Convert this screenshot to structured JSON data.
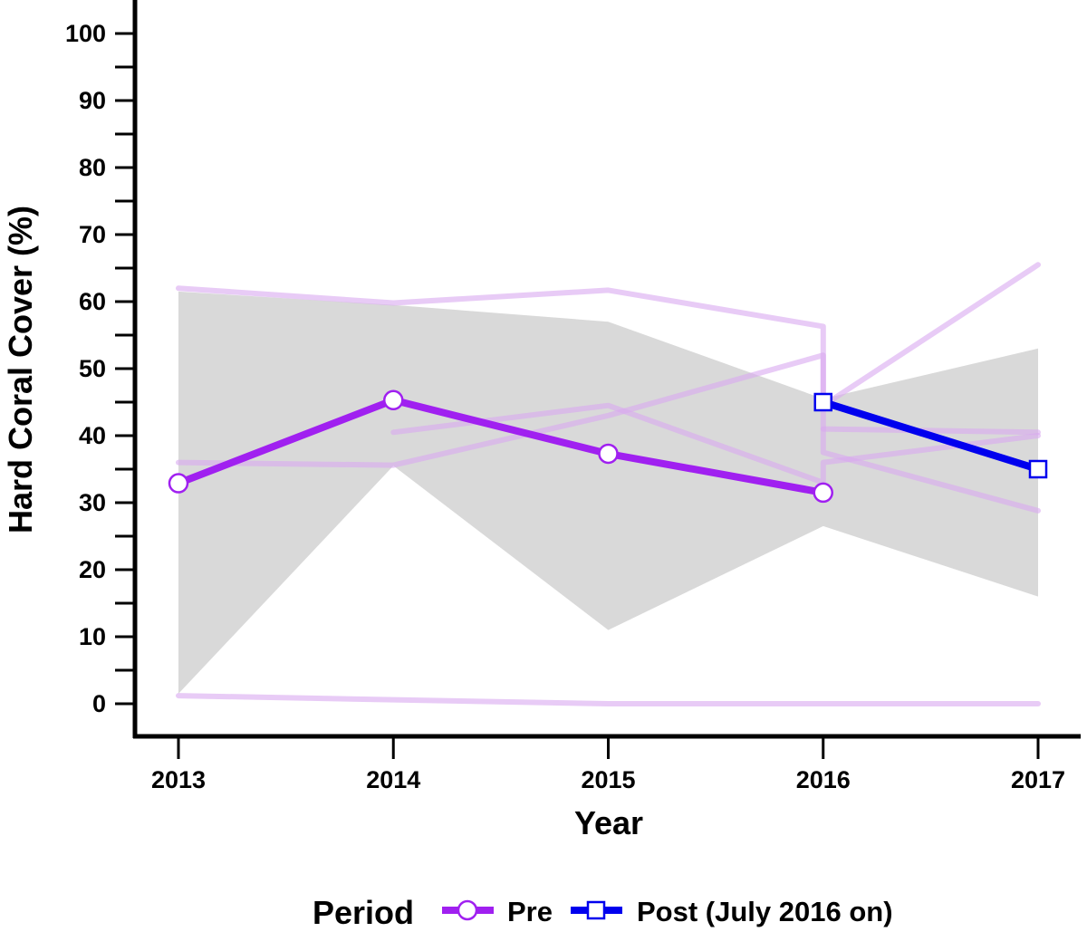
{
  "chart_data": {
    "type": "line",
    "title": "",
    "xlabel": "Year",
    "ylabel": "Hard Coral Cover (%)",
    "x_ticks": [
      "2013",
      "2014",
      "2015",
      "2016",
      "2017"
    ],
    "y_ticks": [
      "0",
      "10",
      "20",
      "30",
      "40",
      "50",
      "60",
      "70",
      "80",
      "90",
      "100"
    ],
    "xlim": [
      2012.8,
      2017.2
    ],
    "ylim": [
      -5,
      105
    ],
    "grid": false,
    "legend": {
      "title": "Period",
      "position": "bottom",
      "entries": [
        "Pre",
        "Post (July 2016 on)"
      ]
    },
    "series": [
      {
        "name": "Pre",
        "color": "#a020f0",
        "marker": "circle",
        "points": [
          [
            2013,
            32.9
          ],
          [
            2014,
            45.3
          ],
          [
            2015,
            37.3
          ],
          [
            2016,
            31.5
          ]
        ]
      },
      {
        "name": "Post (July 2016 on)",
        "color": "#0000ee",
        "marker": "square",
        "points": [
          [
            2016,
            45.0
          ],
          [
            2017,
            35.0
          ]
        ]
      }
    ],
    "confidence_band": {
      "color": "#d9d9d9",
      "upper": [
        [
          2013,
          61.5
        ],
        [
          2014,
          59.5
        ],
        [
          2015,
          57.0
        ],
        [
          2016,
          45.5
        ],
        [
          2017,
          53.0
        ]
      ],
      "lower": [
        [
          2013,
          1.5
        ],
        [
          2014,
          35.5
        ],
        [
          2015,
          11.0
        ],
        [
          2016,
          26.5
        ],
        [
          2017,
          16.0
        ]
      ]
    },
    "site_lines": {
      "color": "#d9a8f0",
      "lines": [
        [
          [
            2013,
            62.0
          ],
          [
            2014,
            59.8
          ],
          [
            2015,
            61.7
          ],
          [
            2016,
            56.3
          ],
          [
            2016,
            44.5
          ],
          [
            2017,
            65.5
          ]
        ],
        [
          [
            2013,
            36.0
          ],
          [
            2014,
            35.6
          ],
          [
            2015,
            43.0
          ],
          [
            2016,
            52.0
          ],
          [
            2016,
            37.5
          ],
          [
            2017,
            28.8
          ]
        ],
        [
          [
            2014,
            40.5
          ],
          [
            2015,
            44.5
          ],
          [
            2016,
            33.0
          ],
          [
            2016,
            36.0
          ],
          [
            2017,
            40.0
          ]
        ],
        [
          [
            2016,
            41.0
          ],
          [
            2017,
            40.5
          ]
        ],
        [
          [
            2013,
            1.2
          ],
          [
            2014,
            0.6
          ],
          [
            2015,
            0.0
          ],
          [
            2016,
            0.0
          ],
          [
            2017,
            0.0
          ]
        ]
      ]
    }
  }
}
